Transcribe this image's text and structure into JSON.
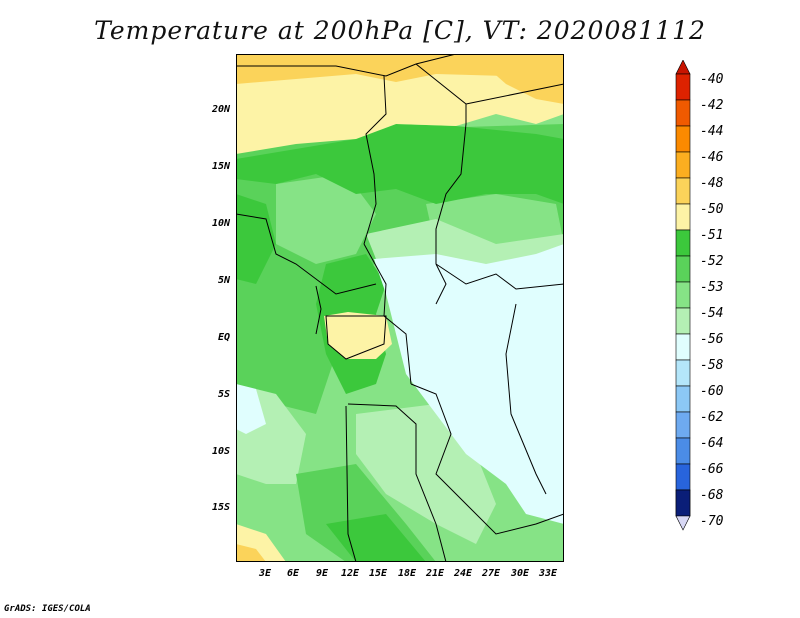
{
  "title": "Temperature at 200hPa [C], VT: 2020081112",
  "credit": "GrADS: IGES/COLA",
  "lat_labels": [
    "20N",
    "15N",
    "10N",
    "5N",
    "EQ",
    "5S",
    "10S",
    "15S"
  ],
  "lon_labels": [
    "3E",
    "6E",
    "9E",
    "12E",
    "15E",
    "18E",
    "21E",
    "24E",
    "27E",
    "30E",
    "33E"
  ],
  "colorbar": {
    "levels": [
      "-40",
      "-42",
      "-44",
      "-46",
      "-48",
      "-50",
      "-51",
      "-52",
      "-53",
      "-54",
      "-56",
      "-58",
      "-60",
      "-62",
      "-64",
      "-66",
      "-68",
      "-70"
    ],
    "colors": [
      "#dd2200",
      "#f05a00",
      "#fb8a00",
      "#fbae20",
      "#fbd35a",
      "#fdf3a6",
      "#3cc83c",
      "#5ad25a",
      "#86e386",
      "#b4f0b4",
      "#e0fefe",
      "#b4e6fa",
      "#8cc8f5",
      "#6eaaf0",
      "#4b8ce6",
      "#2864dc",
      "#1446c8",
      "#0a1e78"
    ],
    "top_triangle_color": "#c81400",
    "bottom_triangle_color": "#d8d8f5"
  },
  "map_colors": {
    "c48": "#fbd35a",
    "c50": "#fdf3a6",
    "c51": "#3cc83c",
    "c52": "#5ad25a",
    "c53": "#86e386",
    "c54": "#b4f0b4",
    "c56": "#e0fefe",
    "border": "#000000"
  }
}
